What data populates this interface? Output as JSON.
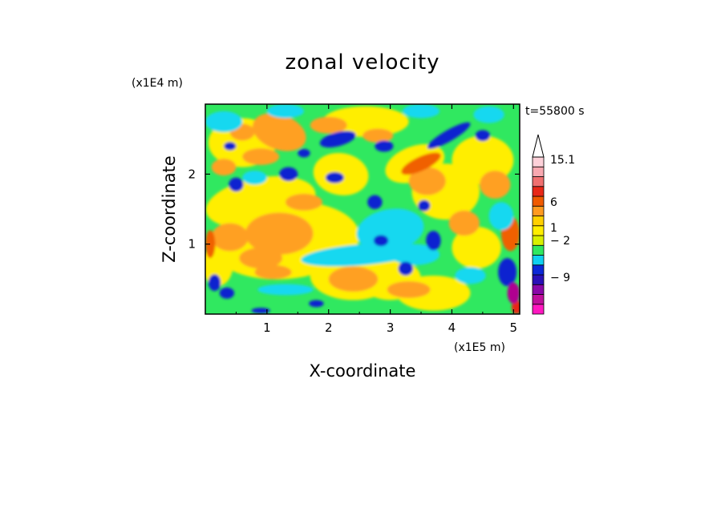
{
  "chart_data": {
    "type": "heatmap",
    "title": "zonal velocity",
    "xlabel": "X-coordinate",
    "ylabel": "Z-coordinate",
    "x_unit": "(x1E5 m)",
    "y_unit": "(x1E4 m)",
    "time_label": "t=55800 s",
    "xlim": [
      0,
      5.1
    ],
    "ylim": [
      0,
      3.0
    ],
    "x_ticks": [
      "1",
      "2",
      "3",
      "4",
      "5"
    ],
    "y_ticks": [
      "1",
      "2"
    ],
    "colorbar": {
      "colors": [
        "#ff18c0",
        "#c0109c",
        "#8a08a8",
        "#2a10b8",
        "#0c28d8",
        "#10d0f0",
        "#30e860",
        "#d8f000",
        "#ffee00",
        "#ffd000",
        "#ff9a20",
        "#f05a00",
        "#e82818",
        "#f07070",
        "#f8a8b0",
        "#fcd0d8"
      ],
      "labels": [
        "15.1",
        "6",
        "1",
        "− 2",
        "− 9"
      ],
      "extend_top": true
    },
    "field_colors": {
      "green": "#30e860",
      "yellow": "#ffee00",
      "orange": "#ffa020",
      "dark_orange": "#f06000",
      "cyan": "#18d8f0",
      "blue": "#1020d0",
      "red": "#e82818",
      "magenta": "#b00090"
    }
  }
}
